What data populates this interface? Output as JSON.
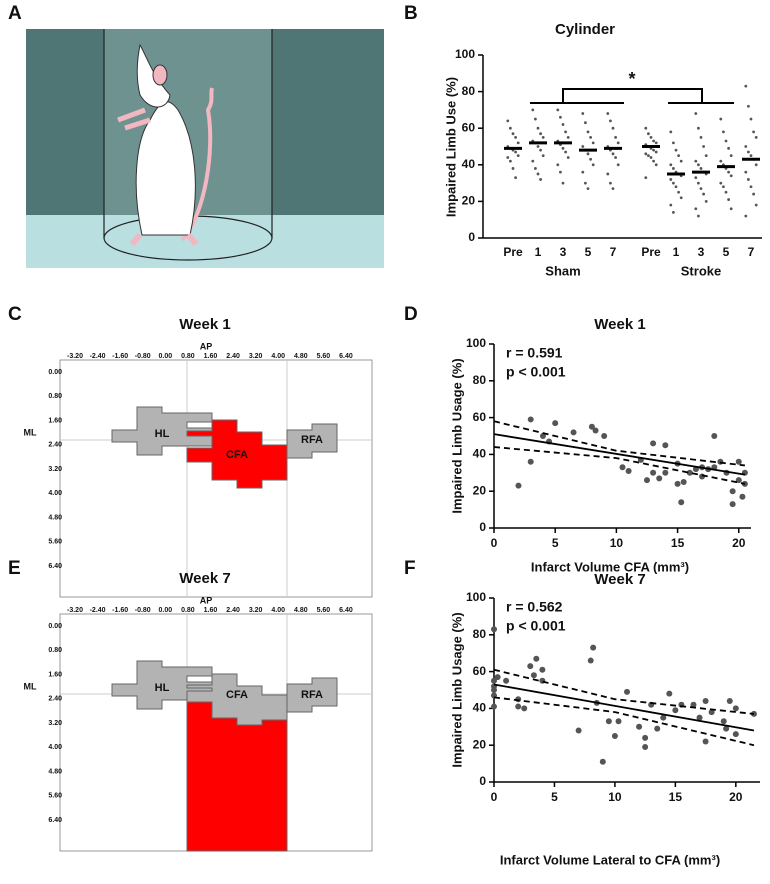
{
  "panel_labels": [
    "A",
    "B",
    "C",
    "D",
    "E",
    "F"
  ],
  "chart_data": [
    {
      "type": "dot",
      "title": "Cylinder",
      "y_label": "Impaired Limb Use (%)",
      "annotation": "*",
      "ylim": [
        0,
        100
      ],
      "yticks": [
        0,
        20,
        40,
        60,
        80,
        100
      ],
      "color": "#555555",
      "series": [
        {
          "name": "Sham",
          "categories": [
            "Pre",
            "1",
            "3",
            "5",
            "7"
          ],
          "means": [
            49,
            52,
            52,
            48,
            49
          ],
          "points": [
            [
              64,
              60,
              57,
              55,
              52,
              50,
              49,
              48,
              47,
              45,
              44,
              42,
              38,
              33
            ],
            [
              70,
              65,
              60,
              57,
              55,
              53,
              52,
              50,
              48,
              45,
              42,
              38,
              35,
              32
            ],
            [
              70,
              66,
              62,
              58,
              55,
              53,
              51,
              49,
              47,
              44,
              40,
              36,
              30
            ],
            [
              68,
              63,
              58,
              55,
              52,
              50,
              48,
              46,
              43,
              40,
              36,
              30,
              27
            ],
            [
              68,
              64,
              60,
              55,
              52,
              50,
              48,
              46,
              44,
              40,
              35,
              30,
              27
            ]
          ]
        },
        {
          "name": "Stroke",
          "categories": [
            "Pre",
            "1",
            "3",
            "5",
            "7"
          ],
          "means": [
            50,
            35,
            36,
            39,
            43
          ],
          "points": [
            [
              60,
              57,
              55,
              53,
              52,
              51,
              50,
              49,
              48,
              47,
              46,
              45,
              44,
              42,
              40,
              33
            ],
            [
              58,
              52,
              48,
              45,
              42,
              40,
              38,
              36,
              35,
              34,
              32,
              30,
              28,
              25,
              22,
              18,
              14
            ],
            [
              68,
              60,
              55,
              50,
              45,
              42,
              40,
              38,
              36,
              35,
              33,
              30,
              27,
              24,
              20,
              16,
              12
            ],
            [
              65,
              58,
              53,
              49,
              45,
              42,
              40,
              38,
              36,
              34,
              30,
              28,
              25,
              21,
              16
            ],
            [
              83,
              72,
              65,
              58,
              55,
              50,
              47,
              45,
              43,
              40,
              36,
              32,
              28,
              24,
              18,
              12
            ]
          ]
        }
      ]
    },
    {
      "type": "scatter",
      "title": "Week 1",
      "x_label": "Infarct Volume CFA (mm³)",
      "y_label": "Impaired Limb Usage (%)",
      "annotations": [
        "r = 0.591",
        "p < 0.001"
      ],
      "color": "#555555",
      "xlim": [
        0,
        21
      ],
      "xticks": [
        0,
        5,
        10,
        15,
        20
      ],
      "ylim": [
        0,
        100
      ],
      "yticks": [
        0,
        20,
        40,
        60,
        80,
        100
      ],
      "x": [
        2,
        3,
        3,
        4,
        4.5,
        5,
        6.5,
        8,
        8.3,
        9,
        10.5,
        11,
        12,
        12.5,
        13,
        13,
        13.5,
        14,
        14,
        15,
        15,
        15.3,
        15.5,
        16,
        16.5,
        17,
        17,
        17.5,
        18,
        18,
        18.5,
        19,
        19.5,
        19.5,
        20,
        20,
        20.3,
        20.5,
        20.5
      ],
      "values": [
        23,
        59,
        36,
        50,
        47,
        57,
        52,
        55,
        53,
        50,
        33,
        31,
        37,
        26,
        46,
        30,
        27,
        30,
        45,
        35,
        24,
        14,
        25,
        30,
        32,
        33,
        28,
        32,
        33,
        50,
        36,
        30,
        20,
        13,
        36,
        26,
        17,
        30,
        24
      ],
      "fit": {
        "x": [
          0,
          20.5
        ],
        "values": [
          51,
          29
        ]
      },
      "ci_upper": {
        "x": [
          0,
          10,
          20.5
        ],
        "values": [
          58,
          42,
          34
        ]
      },
      "ci_lower": {
        "x": [
          0,
          10,
          20.5
        ],
        "values": [
          44,
          38,
          24
        ]
      }
    },
    {
      "type": "scatter",
      "title": "Week 7",
      "x_label": "Infarct Volume Lateral to CFA (mm³)",
      "y_label": "Impaired Limb Usage (%)",
      "annotations": [
        "r = 0.562",
        "p < 0.001"
      ],
      "color": "#555555",
      "xlim": [
        0,
        22
      ],
      "xticks": [
        0,
        5,
        10,
        15,
        20
      ],
      "ylim": [
        0,
        100
      ],
      "yticks": [
        0,
        20,
        40,
        60,
        80,
        100
      ],
      "x": [
        0,
        0,
        0,
        0,
        0,
        0,
        0.3,
        1,
        2,
        2,
        2.5,
        3,
        3.3,
        3.5,
        4,
        4,
        7,
        8,
        8.2,
        8.5,
        9,
        9.5,
        10,
        10.3,
        11,
        12,
        12.5,
        12.5,
        13,
        13.5,
        14,
        14.5,
        15,
        15.5,
        16.5,
        17,
        17.5,
        17.5,
        18,
        19,
        19.2,
        19.5,
        20,
        20,
        21.5
      ],
      "values": [
        83,
        55,
        52,
        50,
        47,
        41,
        57,
        55,
        45,
        41,
        40,
        63,
        58,
        67,
        61,
        55,
        28,
        66,
        73,
        43,
        11,
        33,
        25,
        33,
        49,
        30,
        19,
        24,
        42,
        29,
        35,
        48,
        39,
        42,
        42,
        35,
        44,
        22,
        38,
        33,
        29,
        44,
        40,
        26,
        37
      ],
      "fit": {
        "x": [
          0,
          21.5
        ],
        "values": [
          53,
          28
        ]
      },
      "ci_upper": {
        "x": [
          0,
          10,
          21.5
        ],
        "values": [
          61,
          45,
          37
        ]
      },
      "ci_lower": {
        "x": [
          0,
          10,
          21.5
        ],
        "values": [
          46,
          38,
          20
        ]
      }
    }
  ],
  "maps": [
    {
      "title": "Week 1",
      "ap_label": "AP",
      "ml_label": "ML",
      "ap_ticks": [
        "-3.20",
        "-2.40",
        "-1.60",
        "-0.80",
        "0.00",
        "0.80",
        "1.60",
        "2.40",
        "3.20",
        "4.00",
        "4.80",
        "5.60",
        "6.40"
      ],
      "ml_ticks": [
        "0.00",
        "0.80",
        "1.60",
        "2.40",
        "3.20",
        "4.00",
        "4.80",
        "5.60",
        "6.40"
      ],
      "regions": [
        "HL",
        "CFA",
        "RFA"
      ]
    },
    {
      "title": "Week 7",
      "ap_label": "AP",
      "ml_label": "ML",
      "ap_ticks": [
        "-3.20",
        "-2.40",
        "-1.60",
        "-0.80",
        "0.00",
        "0.80",
        "1.60",
        "2.40",
        "3.20",
        "4.00",
        "4.80",
        "5.60",
        "6.40"
      ],
      "ml_ticks": [
        "0.00",
        "0.80",
        "1.60",
        "2.40",
        "3.20",
        "4.00",
        "4.80",
        "5.60",
        "6.40"
      ],
      "regions": [
        "HL",
        "CFA",
        "RFA"
      ]
    }
  ]
}
